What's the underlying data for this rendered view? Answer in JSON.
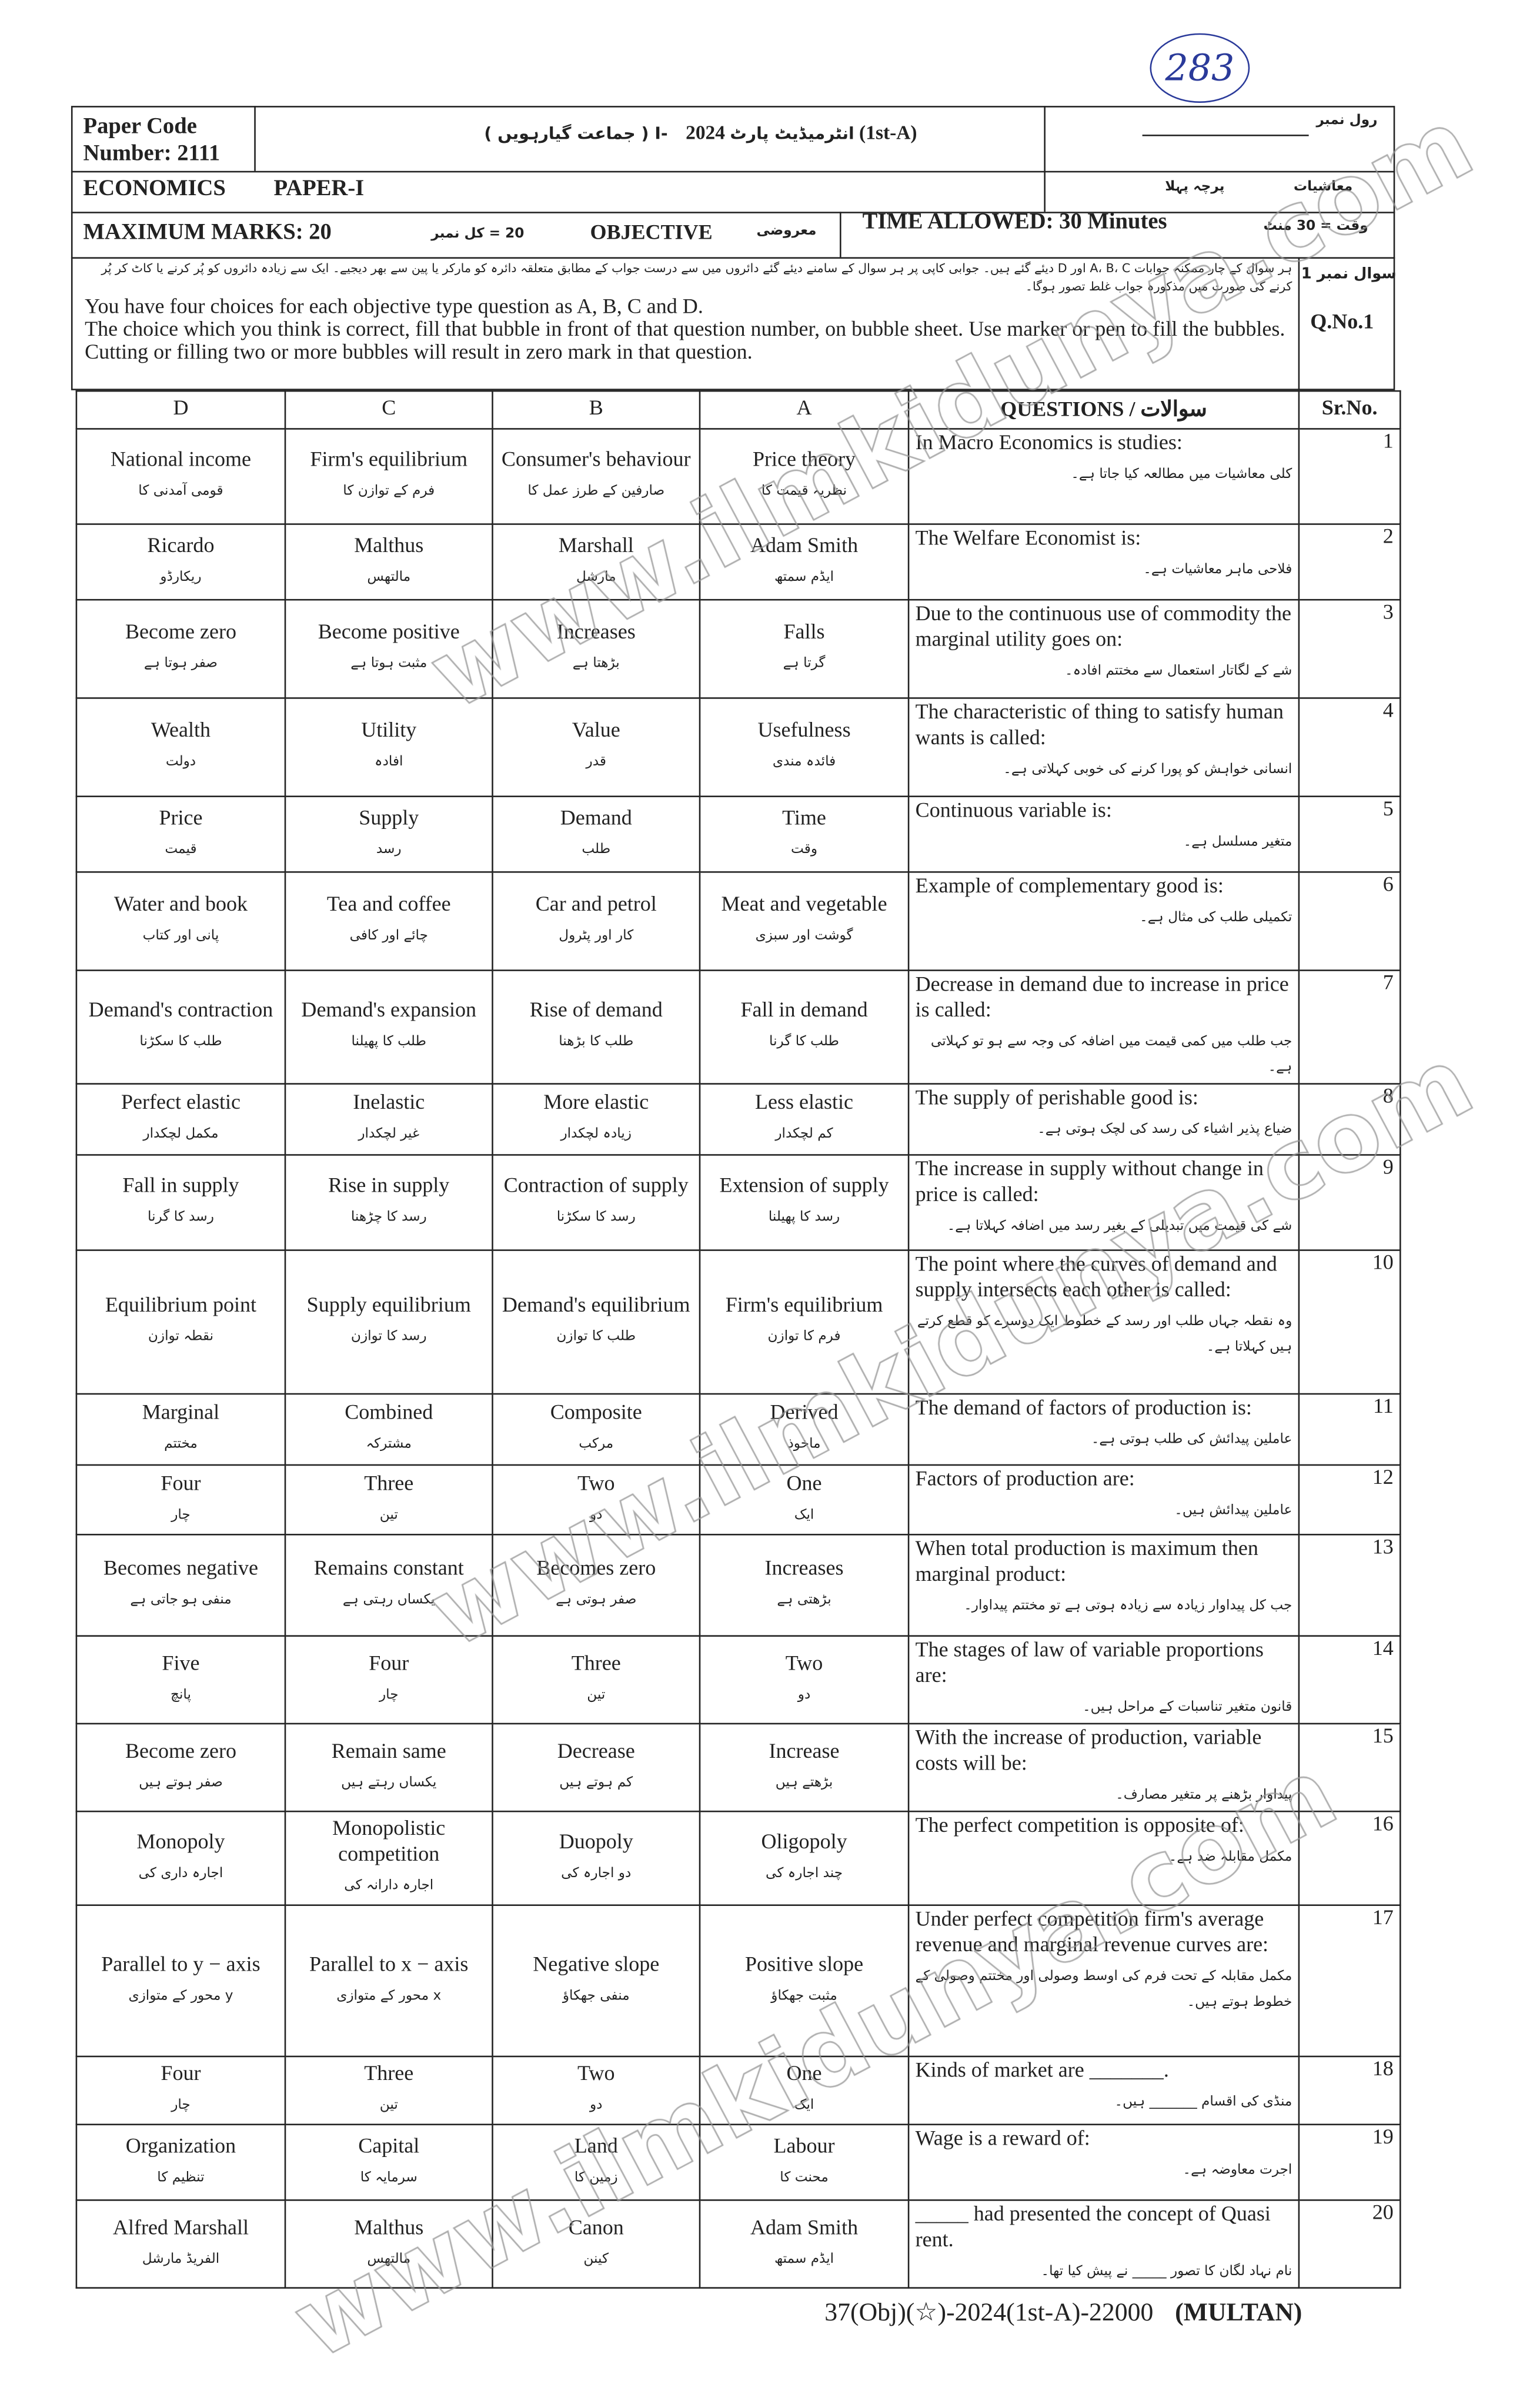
{
  "handwritten_number": "283",
  "watermark": "www.ilmkidunya.com",
  "header": {
    "paper_code_label": "Paper Code",
    "paper_code_number": "Number: 2111",
    "exam_title_ur": "( جماعت گیارہویں ) I- انٹرمیڈیٹ پارٹ",
    "exam_year": "2024 (1st-A)",
    "roll_no_ur": "رول نمبر",
    "subject": "ECONOMICS",
    "paper": "PAPER-I",
    "subject_ur": "معاشیات",
    "paper_ur": "پرچہ پہلا",
    "max_marks": "MAXIMUM MARKS: 20",
    "total_marks_ur": "20  =  کل نمبر",
    "objective": "OBJECTIVE",
    "objective_ur": "معروضی",
    "time_allowed": "TIME ALLOWED: 30 Minutes",
    "time_ur": "وقت  =  30 منٹ",
    "question_no_ur": "سوال نمبر 1",
    "question_no": "Q.No.1",
    "instructions_ur": "ہر سوال کے چار ممکنہ جوابات A، B، C اور D دیئے گئے ہیں۔ جوابی کاپی پر ہر سوال کے سامنے دیئے گئے دائروں میں سے درست جواب کے مطابق متعلقہ دائرہ کو مارکر یا پین سے بھر دیجیے۔ ایک سے زیادہ دائروں کو پُر کرنے یا کاٹ کر پُر کرنے کی صورت میں مذکورہ جواب غلط تصور ہوگا۔",
    "instructions_en_1": "You have four choices for each objective type question as A, B, C and D.",
    "instructions_en_2": "The choice which you think is correct, fill that bubble in front of that question number, on bubble sheet. Use marker or pen to fill the bubbles.  Cutting or filling two or more bubbles will result in zero mark in that question."
  },
  "columns": {
    "d": "D",
    "c": "C",
    "b": "B",
    "a": "A",
    "questions": "QUESTIONS / سوالات",
    "sr": "Sr.No."
  },
  "questions": [
    {
      "sr": "1",
      "en": "In Macro Economics is studies:",
      "ur": "کلی معاشیات میں مطالعہ کیا جاتا ہے۔",
      "a": {
        "en": "Price theory",
        "ur": "نظریہ قیمت کا"
      },
      "b": {
        "en": "Consumer's behaviour",
        "ur": "صارفین کے طرز عمل کا"
      },
      "c": {
        "en": "Firm's equilibrium",
        "ur": "فرم کے توازن کا"
      },
      "d": {
        "en": "National income",
        "ur": "قومی آمدنی کا"
      }
    },
    {
      "sr": "2",
      "en": "The Welfare Economist is:",
      "ur": "فلاحی ماہر معاشیات ہے۔",
      "a": {
        "en": "Adam Smith",
        "ur": "ایڈم سمتھ"
      },
      "b": {
        "en": "Marshall",
        "ur": "مارشل"
      },
      "c": {
        "en": "Malthus",
        "ur": "مالتھس"
      },
      "d": {
        "en": "Ricardo",
        "ur": "ریکارڈو"
      }
    },
    {
      "sr": "3",
      "en": "Due to the continuous use of commodity the marginal utility goes on:",
      "ur": "شے کے لگاتار استعمال سے مختتم افادہ۔",
      "a": {
        "en": "Falls",
        "ur": "گرتا ہے"
      },
      "b": {
        "en": "Increases",
        "ur": "بڑھتا ہے"
      },
      "c": {
        "en": "Become positive",
        "ur": "مثبت ہوتا ہے"
      },
      "d": {
        "en": "Become zero",
        "ur": "صفر ہوتا ہے"
      }
    },
    {
      "sr": "4",
      "en": "The characteristic of thing to satisfy human wants is called:",
      "ur": "انسانی خواہش کو پورا کرنے کی خوبی کہلاتی ہے۔",
      "a": {
        "en": "Usefulness",
        "ur": "فائدہ مندی"
      },
      "b": {
        "en": "Value",
        "ur": "قدر"
      },
      "c": {
        "en": "Utility",
        "ur": "افادہ"
      },
      "d": {
        "en": "Wealth",
        "ur": "دولت"
      }
    },
    {
      "sr": "5",
      "en": "Continuous variable is:",
      "ur": "متغیر مسلسل ہے۔",
      "a": {
        "en": "Time",
        "ur": "وقت"
      },
      "b": {
        "en": "Demand",
        "ur": "طلب"
      },
      "c": {
        "en": "Supply",
        "ur": "رسد"
      },
      "d": {
        "en": "Price",
        "ur": "قیمت"
      }
    },
    {
      "sr": "6",
      "en": "Example of complementary good is:",
      "ur": "تکمیلی طلب کی مثال ہے۔",
      "a": {
        "en": "Meat and vegetable",
        "ur": "گوشت اور سبزی"
      },
      "b": {
        "en": "Car and petrol",
        "ur": "کار اور پٹرول"
      },
      "c": {
        "en": "Tea and coffee",
        "ur": "چائے اور کافی"
      },
      "d": {
        "en": "Water and book",
        "ur": "پانی اور کتاب"
      }
    },
    {
      "sr": "7",
      "en": "Decrease in demand due to increase in price is called:",
      "ur": "جب طلب میں کمی قیمت میں اضافہ کی وجہ سے ہو تو کہلاتی ہے۔",
      "a": {
        "en": "Fall in demand",
        "ur": "طلب کا گرنا"
      },
      "b": {
        "en": "Rise of demand",
        "ur": "طلب کا بڑھنا"
      },
      "c": {
        "en": "Demand's expansion",
        "ur": "طلب کا پھیلنا"
      },
      "d": {
        "en": "Demand's contraction",
        "ur": "طلب کا سکڑنا"
      }
    },
    {
      "sr": "8",
      "en": "The supply of perishable good is:",
      "ur": "ضیاع پذیر اشیاء کی رسد کی لچک ہوتی ہے۔",
      "a": {
        "en": "Less elastic",
        "ur": "کم لچکدار"
      },
      "b": {
        "en": "More elastic",
        "ur": "زیادہ لچکدار"
      },
      "c": {
        "en": "Inelastic",
        "ur": "غیر لچکدار"
      },
      "d": {
        "en": "Perfect elastic",
        "ur": "مکمل لچکدار"
      }
    },
    {
      "sr": "9",
      "en": "The increase in supply without change in price is called:",
      "ur": "شے کی قیمت میں تبدیلی کے بغیر رسد میں اضافہ کہلاتا ہے۔",
      "a": {
        "en": "Extension of supply",
        "ur": "رسد کا پھیلنا"
      },
      "b": {
        "en": "Contraction of supply",
        "ur": "رسد کا سکڑنا"
      },
      "c": {
        "en": "Rise in supply",
        "ur": "رسد کا چڑھنا"
      },
      "d": {
        "en": "Fall in supply",
        "ur": "رسد کا گرنا"
      }
    },
    {
      "sr": "10",
      "en": "The point where the curves of demand and supply intersects each other is called:",
      "ur": "وہ نقطہ جہاں طلب اور رسد کے خطوط ایک دوسرے کو قطع کرتے ہیں کہلاتا ہے۔",
      "a": {
        "en": "Firm's equilibrium",
        "ur": "فرم کا توازن"
      },
      "b": {
        "en": "Demand's equilibrium",
        "ur": "طلب کا توازن"
      },
      "c": {
        "en": "Supply equilibrium",
        "ur": "رسد کا توازن"
      },
      "d": {
        "en": "Equilibrium point",
        "ur": "نقطہ توازن"
      }
    },
    {
      "sr": "11",
      "en": "The demand of factors of production is:",
      "ur": "عاملین پیدائش کی طلب ہوتی ہے۔",
      "a": {
        "en": "Derived",
        "ur": "ماخوذ"
      },
      "b": {
        "en": "Composite",
        "ur": "مرکب"
      },
      "c": {
        "en": "Combined",
        "ur": "مشترکہ"
      },
      "d": {
        "en": "Marginal",
        "ur": "مختتم"
      }
    },
    {
      "sr": "12",
      "en": "Factors of production are:",
      "ur": "عاملین پیدائش ہیں۔",
      "a": {
        "en": "One",
        "ur": "ایک"
      },
      "b": {
        "en": "Two",
        "ur": "دو"
      },
      "c": {
        "en": "Three",
        "ur": "تین"
      },
      "d": {
        "en": "Four",
        "ur": "چار"
      }
    },
    {
      "sr": "13",
      "en": "When total production is maximum then marginal product:",
      "ur": "جب کل پیداوار زیادہ سے زیادہ ہوتی ہے تو مختتم پیداوار۔",
      "a": {
        "en": "Increases",
        "ur": "بڑھتی ہے"
      },
      "b": {
        "en": "Becomes zero",
        "ur": "صفر ہوتی ہے"
      },
      "c": {
        "en": "Remains constant",
        "ur": "یکساں رہتی ہے"
      },
      "d": {
        "en": "Becomes negative",
        "ur": "منفی ہو جاتی ہے"
      }
    },
    {
      "sr": "14",
      "en": "The stages of law of variable proportions are:",
      "ur": "قانون متغیر تناسبات کے مراحل ہیں۔",
      "a": {
        "en": "Two",
        "ur": "دو"
      },
      "b": {
        "en": "Three",
        "ur": "تین"
      },
      "c": {
        "en": "Four",
        "ur": "چار"
      },
      "d": {
        "en": "Five",
        "ur": "پانچ"
      }
    },
    {
      "sr": "15",
      "en": "With the increase of production, variable costs will be:",
      "ur": "پیداوار بڑھنے پر متغیر مصارف۔",
      "a": {
        "en": "Increase",
        "ur": "بڑھتے ہیں"
      },
      "b": {
        "en": "Decrease",
        "ur": "کم ہوتے ہیں"
      },
      "c": {
        "en": "Remain same",
        "ur": "یکساں رہتے ہیں"
      },
      "d": {
        "en": "Become zero",
        "ur": "صفر ہوتے ہیں"
      }
    },
    {
      "sr": "16",
      "en": "The perfect competition is opposite of:",
      "ur": "مکمل مقابلہ ضد ہے۔",
      "a": {
        "en": "Oligopoly",
        "ur": "چند اجارہ کی"
      },
      "b": {
        "en": "Duopoly",
        "ur": "دو اجارہ کی"
      },
      "c": {
        "en": "Monopolistic competition",
        "ur": "اجارہ دارانہ کی"
      },
      "d": {
        "en": "Monopoly",
        "ur": "اجارہ داری کی"
      }
    },
    {
      "sr": "17",
      "en": "Under perfect competition firm's average revenue and marginal revenue curves are:",
      "ur": "مکمل مقابلہ کے تحت فرم کی اوسط وصولی اور مختتم وصولی کے خطوط ہوتے ہیں۔",
      "a": {
        "en": "Positive slope",
        "ur": "مثبت جھکاؤ"
      },
      "b": {
        "en": "Negative slope",
        "ur": "منفی جھکاؤ"
      },
      "c": {
        "en": "Parallel to x − axis",
        "ur": "x محور کے متوازی"
      },
      "d": {
        "en": "Parallel to y − axis",
        "ur": "y محور کے متوازی"
      }
    },
    {
      "sr": "18",
      "en": "Kinds of market are _______.",
      "ur": "منڈی کی اقسام _______ ہیں۔",
      "a": {
        "en": "One",
        "ur": "ایک"
      },
      "b": {
        "en": "Two",
        "ur": "دو"
      },
      "c": {
        "en": "Three",
        "ur": "تین"
      },
      "d": {
        "en": "Four",
        "ur": "چار"
      }
    },
    {
      "sr": "19",
      "en": "Wage is a reward of:",
      "ur": "اجرت معاوضہ ہے۔",
      "a": {
        "en": "Labour",
        "ur": "محنت کا"
      },
      "b": {
        "en": "Land",
        "ur": "زمین کا"
      },
      "c": {
        "en": "Capital",
        "ur": "سرمایہ کا"
      },
      "d": {
        "en": "Organization",
        "ur": "تنظیم کا"
      }
    },
    {
      "sr": "20",
      "en": "_____ had presented the concept of Quasi rent.",
      "ur": "نام نہاد لگان کا تصور _____ نے پیش کیا تھا۔",
      "a": {
        "en": "Adam Smith",
        "ur": "ایڈم سمتھ"
      },
      "b": {
        "en": "Canon",
        "ur": "کینن"
      },
      "c": {
        "en": "Malthus",
        "ur": "مالتھس"
      },
      "d": {
        "en": "Alfred Marshall",
        "ur": "الفریڈ مارشل"
      }
    }
  ],
  "footer": {
    "code": "37(Obj)(☆)-2024(1st-A)-22000",
    "board": "(MULTAN)"
  }
}
